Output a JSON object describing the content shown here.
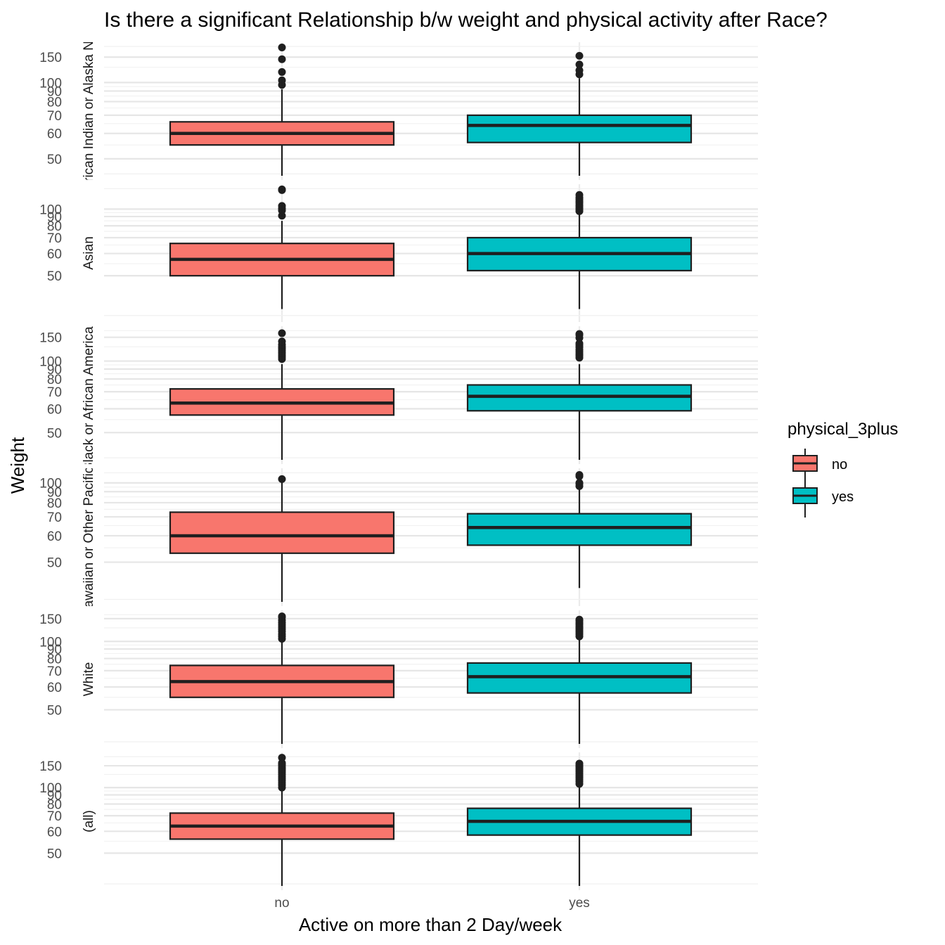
{
  "chart_data": {
    "type": "boxplot",
    "title": "Is there a significant Relationship b/w weight and physical activity after Race?",
    "xlabel": "Active on more than 2 Day/week",
    "ylabel": "Weight",
    "categories": [
      "no",
      "yes"
    ],
    "legend": {
      "title": "physical_3plus",
      "position": "right",
      "items": [
        {
          "label": "no",
          "color": "#F8766D"
        },
        {
          "label": "yes",
          "color": "#00BFC4"
        }
      ]
    },
    "grid": true,
    "y_scale": "reciprocal (1/y)",
    "facets": [
      {
        "label": "American Indian or Alaska Native",
        "ylim": [
          45,
          190
        ],
        "yticks": [
          50,
          60,
          70,
          80,
          90,
          100,
          150
        ],
        "boxes": [
          {
            "category": "no",
            "whisker_low": 45,
            "q1": 55,
            "median": 60,
            "q3": 66,
            "whisker_high": 92,
            "outliers": [
              97,
              103,
              116,
              144,
              185
            ]
          },
          {
            "category": "yes",
            "whisker_low": 45,
            "q1": 56,
            "median": 64,
            "q3": 70,
            "whisker_high": 106,
            "outliers": [
              112,
              119,
              131,
              154
            ]
          }
        ]
      },
      {
        "label": "Asian",
        "ylim": [
          38,
          145
        ],
        "yticks": [
          50,
          60,
          70,
          80,
          90,
          100
        ],
        "boxes": [
          {
            "category": "no",
            "whisker_low": 40,
            "q1": 50,
            "median": 57,
            "q3": 66,
            "whisker_high": 85,
            "outliers": [
              91,
              98,
              101,
              105,
              140,
              142
            ]
          },
          {
            "category": "yes",
            "whisker_low": 40,
            "q1": 52,
            "median": 60,
            "q3": 70,
            "whisker_high": 94,
            "outliers": [
              97,
              100,
              103,
              106,
              110,
              113,
              117,
              121,
              127
            ]
          }
        ]
      },
      {
        "label": "Black or African American",
        "ylim": [
          42,
          175
        ],
        "yticks": [
          50,
          60,
          70,
          80,
          90,
          100,
          150
        ],
        "boxes": [
          {
            "category": "no",
            "whisker_low": 42,
            "q1": 57,
            "median": 63,
            "q3": 72,
            "whisker_high": 96,
            "outliers": [
              103,
              106,
              109,
              113,
              117,
              121,
              125,
              130,
              138,
              164
            ]
          },
          {
            "category": "yes",
            "whisker_low": 42,
            "q1": 59,
            "median": 67,
            "q3": 75,
            "whisker_high": 96,
            "outliers": [
              105,
              108,
              111,
              115,
              119,
              124,
              129,
              133,
              148,
              158,
              161
            ]
          }
        ]
      },
      {
        "label": "Native Hawaiian or Other Pacific Islander",
        "ylim": [
          40,
          115
        ],
        "yticks": [
          50,
          60,
          70,
          80,
          90,
          100
        ],
        "boxes": [
          {
            "category": "no",
            "whisker_low": 40,
            "q1": 53,
            "median": 60,
            "q3": 73,
            "whisker_high": 102,
            "outliers": [
              105
            ]
          },
          {
            "category": "yes",
            "whisker_low": 43,
            "q1": 56,
            "median": 64,
            "q3": 72,
            "whisker_high": 95,
            "outliers": [
              96,
              99,
              100,
              109,
              111
            ]
          }
        ]
      },
      {
        "label": "White",
        "ylim": [
          40,
          165
        ],
        "yticks": [
          50,
          60,
          70,
          80,
          90,
          100,
          150
        ],
        "boxes": [
          {
            "category": "no",
            "whisker_low": 40,
            "q1": 55,
            "median": 63,
            "q3": 74,
            "whisker_high": 100,
            "outliers": [
              104,
              108,
              112,
              117,
              122,
              127,
              132,
              138,
              145,
              155,
              158
            ]
          },
          {
            "category": "yes",
            "whisker_low": 40,
            "q1": 57,
            "median": 66,
            "q3": 76,
            "whisker_high": 104,
            "outliers": [
              108,
              112,
              116,
              120,
              124,
              128,
              133,
              137,
              143,
              147
            ]
          }
        ]
      },
      {
        "label": "(all)",
        "ylim": [
          40,
          190
        ],
        "yticks": [
          50,
          60,
          70,
          80,
          90,
          100,
          150
        ],
        "boxes": [
          {
            "category": "no",
            "whisker_low": 40,
            "q1": 56,
            "median": 63,
            "q3": 72,
            "whisker_high": 96,
            "outliers": [
              100,
              104,
              108,
              112,
              116,
              120,
              125,
              130,
              135,
              140,
              145,
              152,
              156,
              160,
              184
            ]
          },
          {
            "category": "yes",
            "whisker_low": 40,
            "q1": 58,
            "median": 66,
            "q3": 76,
            "whisker_high": 102,
            "outliers": [
              106,
              110,
              114,
              118,
              122,
              127,
              132,
              137,
              142,
              147,
              152,
              158
            ]
          }
        ]
      }
    ]
  }
}
